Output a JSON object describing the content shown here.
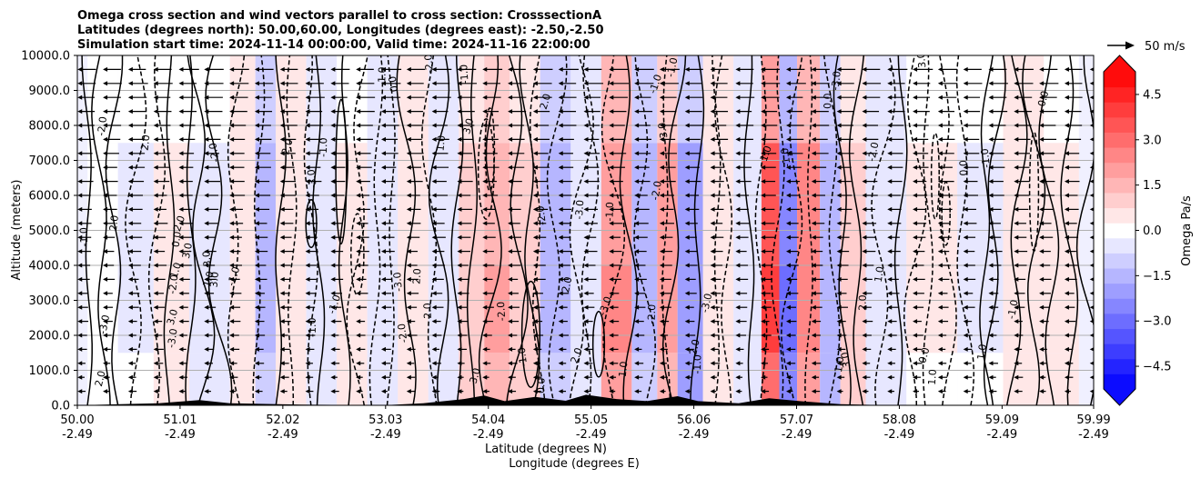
{
  "chart_data": {
    "type": "heatmap",
    "subtype": "cross-section contour with wind vectors",
    "title_lines": [
      "Omega cross section and wind vectors parallel to cross section: CrosssectionA",
      "Latitudes (degrees north): 50.00,60.00, Longitudes (degrees east): -2.50,-2.50",
      "Simulation start time: 2024-11-14 00:00:00, Valid time: 2024-11-16 22:00:00"
    ],
    "xlabel_lines": [
      "Latitude (degrees N)",
      "Longitude (degrees E)"
    ],
    "ylabel": "Altitude (meters)",
    "x_ticks": [
      {
        "lat": "50.00",
        "lon": "-2.49",
        "value": 50.0
      },
      {
        "lat": "51.01",
        "lon": "-2.49",
        "value": 51.01
      },
      {
        "lat": "52.02",
        "lon": "-2.49",
        "value": 52.02
      },
      {
        "lat": "53.03",
        "lon": "-2.49",
        "value": 53.03
      },
      {
        "lat": "54.04",
        "lon": "-2.49",
        "value": 54.04
      },
      {
        "lat": "55.05",
        "lon": "-2.49",
        "value": 55.05
      },
      {
        "lat": "56.06",
        "lon": "-2.49",
        "value": 56.06
      },
      {
        "lat": "57.07",
        "lon": "-2.49",
        "value": 57.07
      },
      {
        "lat": "58.08",
        "lon": "-2.49",
        "value": 58.08
      },
      {
        "lat": "59.09",
        "lon": "-2.49",
        "value": 59.09
      },
      {
        "lat": "59.99",
        "lon": "-2.49",
        "value": 59.99
      }
    ],
    "xlim": [
      50.0,
      59.99
    ],
    "y_ticks": [
      "0.0",
      "1000.0",
      "2000.0",
      "3000.0",
      "4000.0",
      "5000.0",
      "6000.0",
      "7000.0",
      "8000.0",
      "9000.0",
      "10000.0"
    ],
    "ylim": [
      0,
      10000
    ],
    "grid": "horizontal",
    "colorbar": {
      "label": "Omega Pa/s",
      "ticks": [
        "4.5",
        "3.0",
        "1.5",
        "0.0",
        "−1.5",
        "−3.0",
        "−4.5"
      ],
      "range": [
        -5.25,
        5.25
      ],
      "levels": 21,
      "colormap": "bwr",
      "extend": "both"
    },
    "quiver_key": {
      "label": "50 m/s",
      "speed": 50
    },
    "contour_labels": [
      "0.0",
      "1.0",
      "-1.0",
      "2.0",
      "-2.0",
      "3.0",
      "-3.0"
    ],
    "approximate_field": {
      "columns": [
        {
          "lat": 50.2,
          "omega": 0.2
        },
        {
          "lat": 50.6,
          "omega": -0.3
        },
        {
          "lat": 50.9,
          "omega": 0.4
        },
        {
          "lat": 51.3,
          "omega": -0.4
        },
        {
          "lat": 51.7,
          "omega": 0.5
        },
        {
          "lat": 51.8,
          "omega": -1.4
        },
        {
          "lat": 52.1,
          "omega": 0.6
        },
        {
          "lat": 52.4,
          "omega": -0.5
        },
        {
          "lat": 52.7,
          "omega": 0.4
        },
        {
          "lat": 53.0,
          "omega": -0.6
        },
        {
          "lat": 53.3,
          "omega": 0.5
        },
        {
          "lat": 53.6,
          "omega": -0.7
        },
        {
          "lat": 53.9,
          "omega": 1.2
        },
        {
          "lat": 54.1,
          "omega": 1.8
        },
        {
          "lat": 54.4,
          "omega": 1.0
        },
        {
          "lat": 54.7,
          "omega": -1.5
        },
        {
          "lat": 55.0,
          "omega": -0.6
        },
        {
          "lat": 55.3,
          "omega": 2.4
        },
        {
          "lat": 55.6,
          "omega": -1.5
        },
        {
          "lat": 55.8,
          "omega": 2.0
        },
        {
          "lat": 56.0,
          "omega": -2.2
        },
        {
          "lat": 56.3,
          "omega": 0.6
        },
        {
          "lat": 56.6,
          "omega": -0.6
        },
        {
          "lat": 56.85,
          "omega": 3.8
        },
        {
          "lat": 56.95,
          "omega": -3.0
        },
        {
          "lat": 57.2,
          "omega": 2.5
        },
        {
          "lat": 57.4,
          "omega": -1.6
        },
        {
          "lat": 57.6,
          "omega": 1.2
        },
        {
          "lat": 57.9,
          "omega": -0.5
        },
        {
          "lat": 58.4,
          "omega": 0.3
        },
        {
          "lat": 58.9,
          "omega": -0.3
        },
        {
          "lat": 59.3,
          "omega": 0.5
        },
        {
          "lat": 59.7,
          "omega": 0.4
        }
      ]
    }
  }
}
